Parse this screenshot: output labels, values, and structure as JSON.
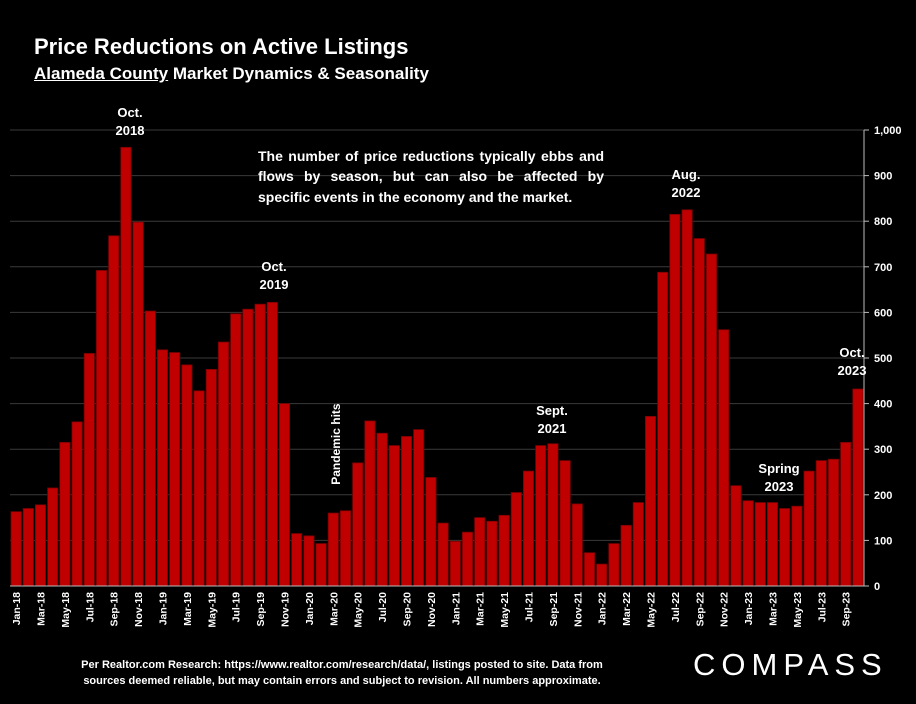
{
  "header": {
    "title": "Price Reductions on Active Listings",
    "subtitle_underlined": "Alameda County",
    "subtitle_rest": " Market Dynamics & Seasonality"
  },
  "note": "The number of price reductions typically ebbs and flows by season, but can also be affected by specific events in the economy and the market.",
  "annotations": [
    {
      "id": "oct2018",
      "lines": [
        "Oct.",
        "2018"
      ]
    },
    {
      "id": "oct2019",
      "lines": [
        "Oct.",
        "2019"
      ]
    },
    {
      "id": "pandemic",
      "lines": [
        "Pandemic hits"
      ]
    },
    {
      "id": "sept2021",
      "lines": [
        "Sept.",
        "2021"
      ]
    },
    {
      "id": "aug2022",
      "lines": [
        "Aug.",
        "2022"
      ]
    },
    {
      "id": "spring2023",
      "lines": [
        "Spring",
        "2023"
      ]
    },
    {
      "id": "oct2023",
      "lines": [
        "Oct.",
        "2023"
      ]
    }
  ],
  "footer": {
    "line1": "Per Realtor.com Research:  https://www.realtor.com/research/data/, listings posted to site. Data from",
    "line2": "sources deemed reliable, but may contain errors and subject to revision. All numbers approximate."
  },
  "logo": "COMPASS",
  "colors": {
    "bar": "#c00000",
    "bar_edge": "#7a0000",
    "grid": "#3a3a3a",
    "background": "#000000"
  },
  "chart_data": {
    "type": "bar",
    "ylim": [
      0,
      1000
    ],
    "yticks": [
      "0",
      "100",
      "200",
      "300",
      "400",
      "500",
      "600",
      "700",
      "800",
      "900",
      "1,000"
    ],
    "grid": true,
    "categories": [
      "Jan-18",
      "Feb-18",
      "Mar-18",
      "Apr-18",
      "May-18",
      "Jun-18",
      "Jul-18",
      "Aug-18",
      "Sep-18",
      "Oct-18",
      "Nov-18",
      "Dec-18",
      "Jan-19",
      "Feb-19",
      "Mar-19",
      "Apr-19",
      "May-19",
      "Jun-19",
      "Jul-19",
      "Aug-19",
      "Sep-19",
      "Oct-19",
      "Nov-19",
      "Dec-19",
      "Jan-20",
      "Feb-20",
      "Mar-20",
      "Apr-20",
      "May-20",
      "Jun-20",
      "Jul-20",
      "Aug-20",
      "Sep-20",
      "Oct-20",
      "Nov-20",
      "Dec-20",
      "Jan-21",
      "Feb-21",
      "Mar-21",
      "Apr-21",
      "May-21",
      "Jun-21",
      "Jul-21",
      "Aug-21",
      "Sep-21",
      "Oct-21",
      "Nov-21",
      "Dec-21",
      "Jan-22",
      "Feb-22",
      "Mar-22",
      "Apr-22",
      "May-22",
      "Jun-22",
      "Jul-22",
      "Aug-22",
      "Sep-22",
      "Oct-22",
      "Nov-22",
      "Dec-22",
      "Jan-23",
      "Feb-23",
      "Mar-23",
      "Apr-23",
      "May-23",
      "Jun-23",
      "Jul-23",
      "Aug-23",
      "Sep-23",
      "Oct-23"
    ],
    "xtick_labels": [
      "Jan-18",
      "Mar-18",
      "May-18",
      "Jul-18",
      "Sep-18",
      "Nov-18",
      "Jan-19",
      "Mar-19",
      "May-19",
      "Jul-19",
      "Sep-19",
      "Nov-19",
      "Jan-20",
      "Mar-20",
      "May-20",
      "Jul-20",
      "Sep-20",
      "Nov-20",
      "Jan-21",
      "Mar-21",
      "May-21",
      "Jul-21",
      "Sep-21",
      "Nov-21",
      "Jan-22",
      "Mar-22",
      "May-22",
      "Jul-22",
      "Sep-22",
      "Nov-22",
      "Jan-23",
      "Mar-23",
      "May-23",
      "Jul-23",
      "Sep-23"
    ],
    "values": [
      163,
      170,
      178,
      215,
      315,
      360,
      510,
      692,
      768,
      962,
      798,
      603,
      518,
      512,
      485,
      428,
      475,
      535,
      597,
      607,
      618,
      622,
      400,
      115,
      110,
      93,
      160,
      165,
      270,
      362,
      335,
      308,
      328,
      343,
      238,
      138,
      98,
      118,
      150,
      142,
      155,
      205,
      252,
      308,
      312,
      275,
      180,
      73,
      48,
      93,
      133,
      183,
      372,
      688,
      815,
      825,
      762,
      728,
      562,
      220,
      187,
      183,
      183,
      170,
      175,
      252,
      275,
      278,
      315,
      432
    ]
  }
}
